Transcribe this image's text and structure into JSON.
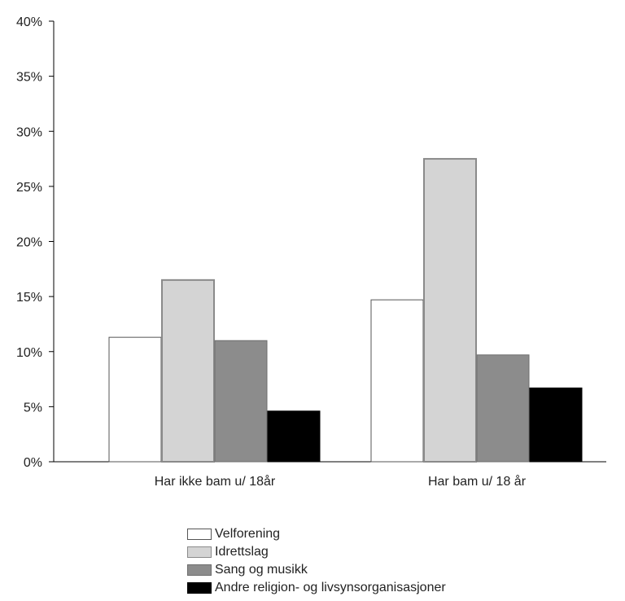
{
  "chart_data": {
    "type": "bar",
    "categories": [
      "Har ikke bam u/ 18år",
      "Har bam u/ 18 år"
    ],
    "series": [
      {
        "name": "Velforening",
        "values": [
          11.3,
          14.7
        ],
        "color": "#ffffff",
        "stroke": "#555555"
      },
      {
        "name": "Idrettslag",
        "values": [
          16.5,
          27.5
        ],
        "color": "#d4d4d4",
        "stroke": "#8a8a8a"
      },
      {
        "name": "Sang og musikk",
        "values": [
          11.0,
          9.7
        ],
        "color": "#8c8c8c",
        "stroke": "#6e6e6e"
      },
      {
        "name": "Andre religion- og livsynsorganisasjoner",
        "values": [
          4.6,
          6.7
        ],
        "color": "#000000",
        "stroke": "#000000"
      }
    ],
    "yticks": [
      "0%",
      "5%",
      "10%",
      "15%",
      "20%",
      "25%",
      "30%",
      "35%",
      "40%"
    ],
    "ylim": [
      0,
      40
    ],
    "legend_position": "bottom",
    "grid": false
  }
}
